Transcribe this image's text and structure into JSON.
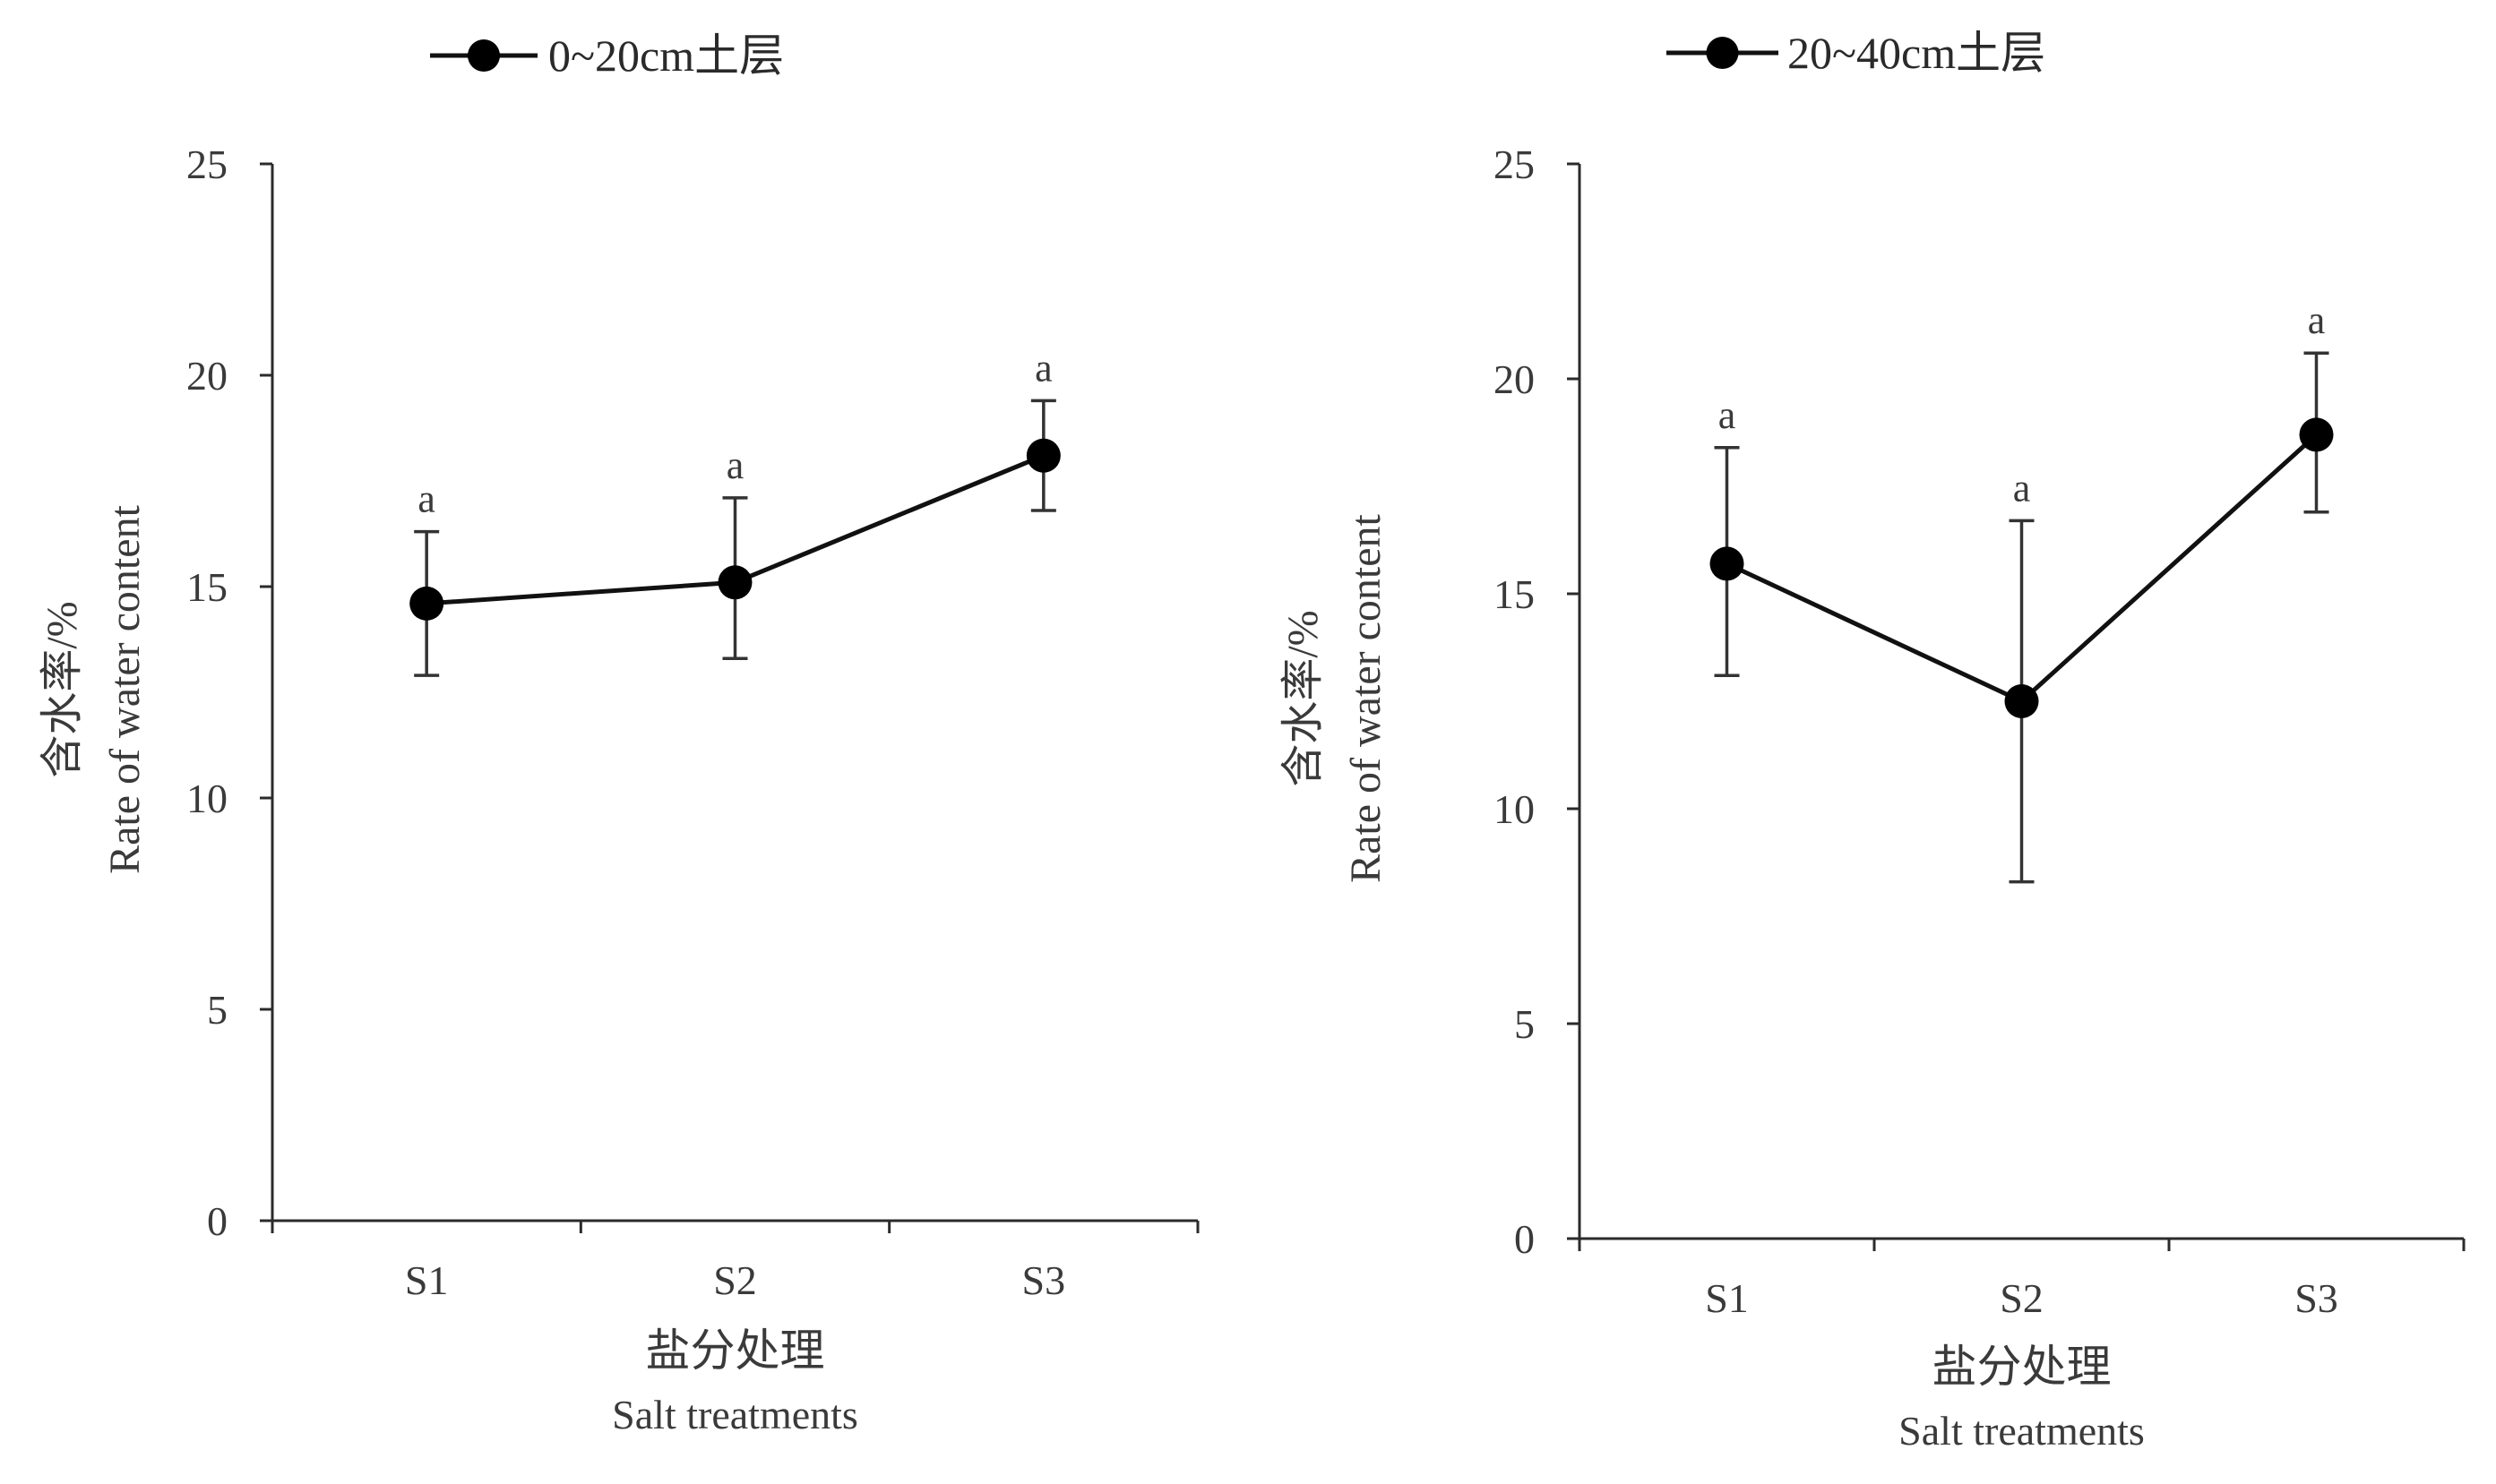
{
  "chart_data": [
    {
      "type": "line",
      "legend": "0~20cm土层",
      "legend_position": "top",
      "categories": [
        "S1",
        "S2",
        "S3"
      ],
      "series": [
        {
          "name": "0~20cm土层",
          "values": [
            14.6,
            15.1,
            18.1
          ],
          "error_upper": [
            16.3,
            17.1,
            19.4
          ],
          "error_lower": [
            12.9,
            13.3,
            16.8
          ],
          "significance": [
            "a",
            "a",
            "a"
          ]
        }
      ],
      "xlabel": "盐分处理",
      "xlabel_en": "Salt treatments",
      "ylabel": "含水率/%",
      "ylabel_en": "Rate of water content",
      "ylim": [
        0,
        25
      ],
      "yticks": [
        "0",
        "5",
        "10",
        "15",
        "20",
        "25"
      ],
      "grid": false,
      "color": "#000000"
    },
    {
      "type": "line",
      "legend": "20~40cm土层",
      "legend_position": "top",
      "categories": [
        "S1",
        "S2",
        "S3"
      ],
      "series": [
        {
          "name": "20~40cm土层",
          "values": [
            15.7,
            12.5,
            18.7
          ],
          "error_upper": [
            18.4,
            16.7,
            20.6
          ],
          "error_lower": [
            13.1,
            8.3,
            16.9
          ],
          "significance": [
            "a",
            "a",
            "a"
          ]
        }
      ],
      "xlabel": "盐分处理",
      "xlabel_en": "Salt treatments",
      "ylabel": "含水率/%",
      "ylabel_en": "Rate of water content",
      "ylim": [
        0,
        25
      ],
      "yticks": [
        "0",
        "5",
        "10",
        "15",
        "20",
        "25"
      ],
      "grid": false,
      "color": "#000000"
    }
  ]
}
